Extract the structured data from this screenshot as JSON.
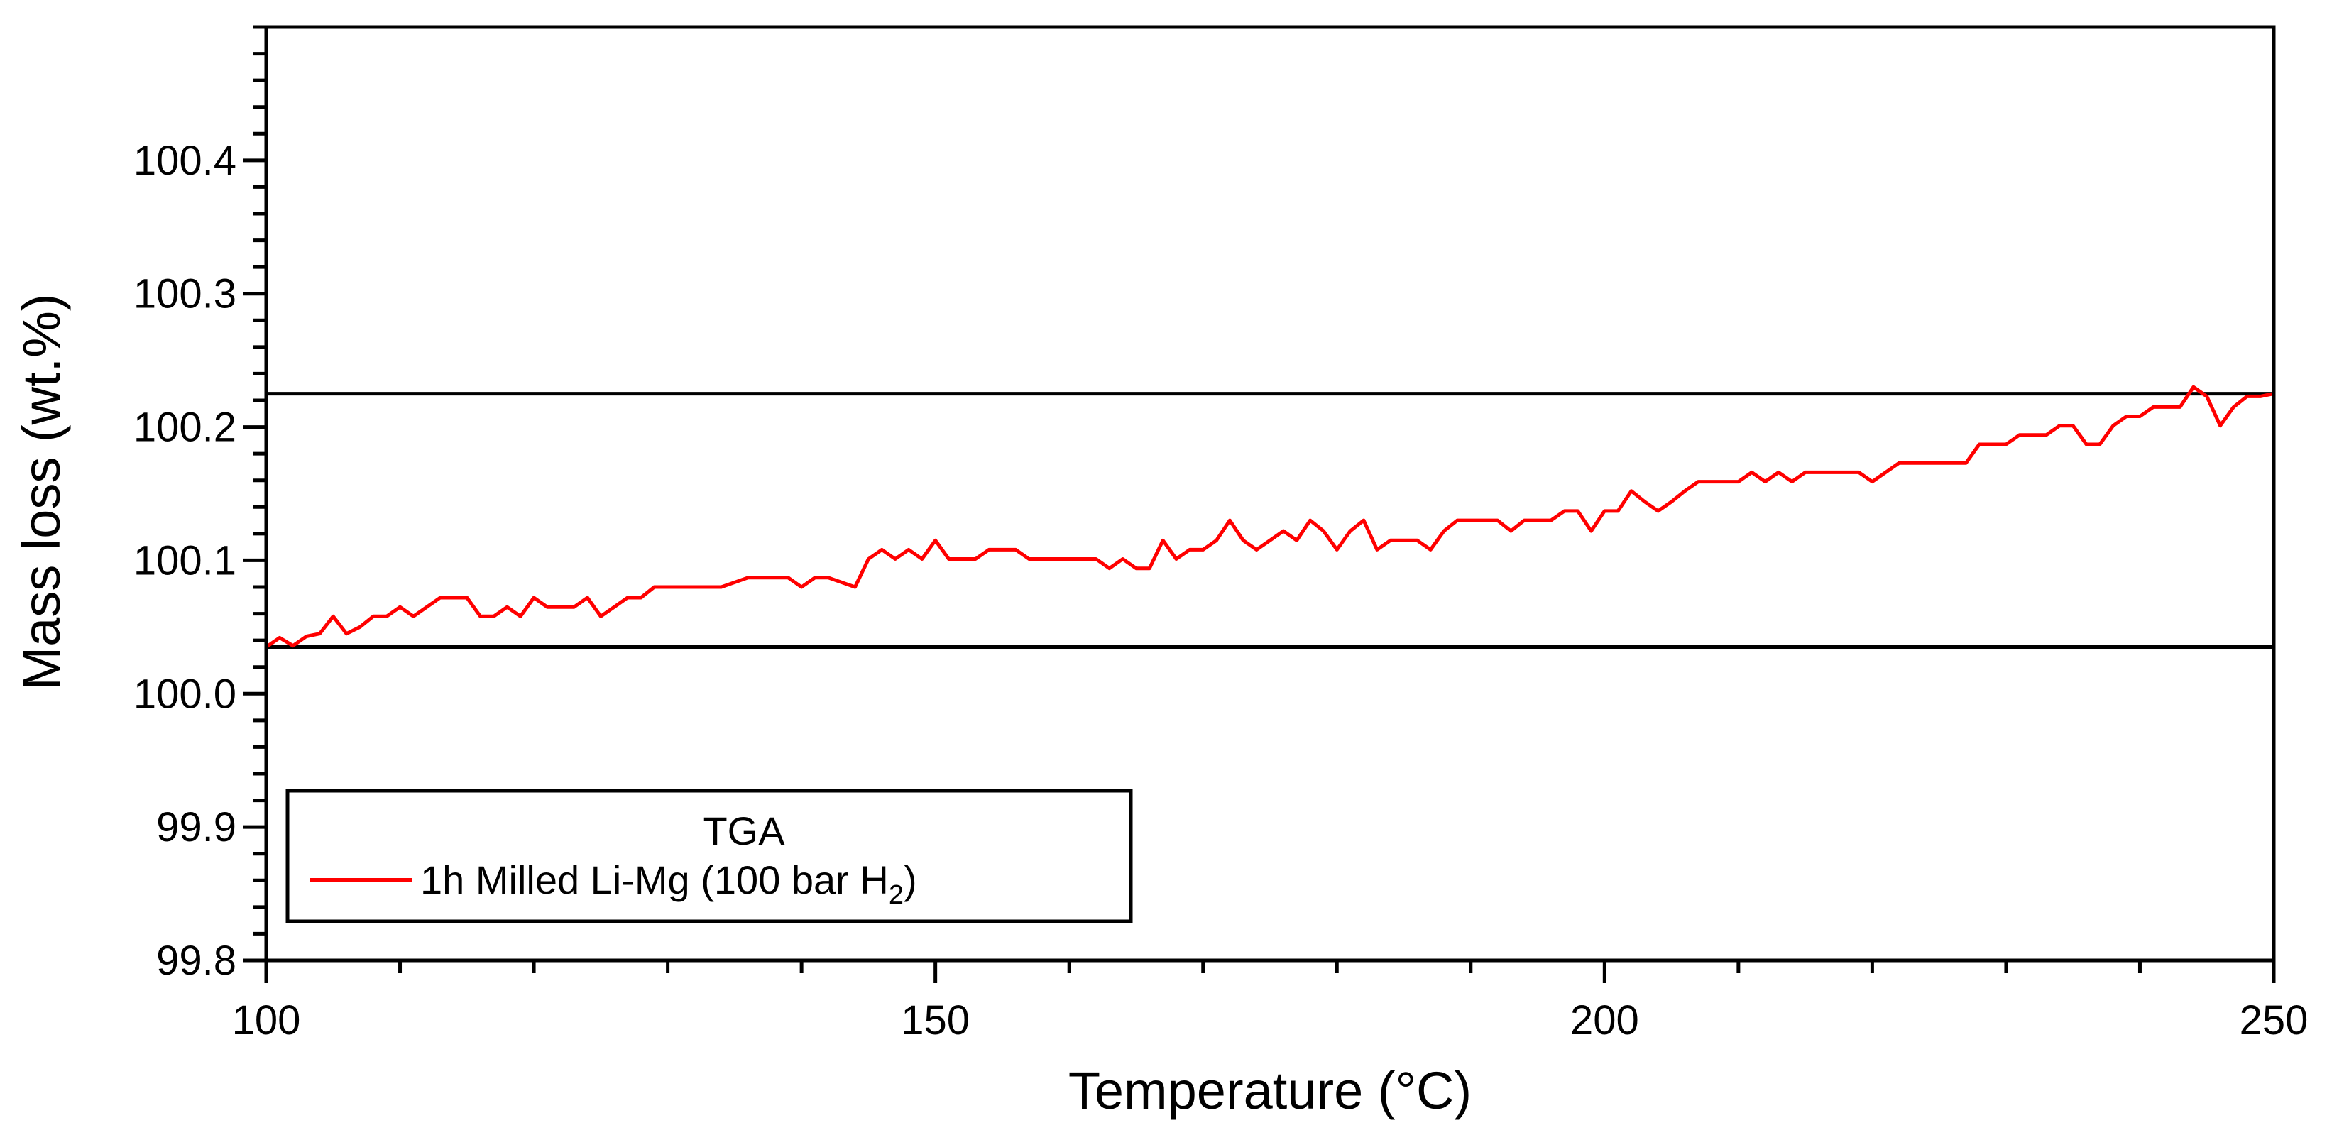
{
  "chart_data": {
    "type": "line",
    "xlabel": "Temperature (°C)",
    "ylabel": "Mass loss (wt.%)",
    "xlim": [
      100,
      250
    ],
    "ylim": [
      99.8,
      100.5
    ],
    "x_ticks": [
      100,
      150,
      200,
      250
    ],
    "x_tick_labels": [
      "100",
      "150",
      "200",
      "250"
    ],
    "x_minor_step": 10,
    "y_ticks": [
      99.8,
      99.9,
      100.0,
      100.1,
      100.2,
      100.3,
      100.4
    ],
    "y_tick_labels": [
      "99.8",
      "99.9",
      "100.0",
      "100.1",
      "100.2",
      "100.3",
      "100.4"
    ],
    "y_minor_step": 0.02,
    "grid": false,
    "legend": {
      "title": "TGA",
      "placement": "bottom-left",
      "entries": [
        {
          "label_main": "1h Milled Li-Mg (100 bar H",
          "label_sub": "2",
          "label_end": ")"
        }
      ]
    },
    "reference_lines": [
      {
        "y": 100.225,
        "color": "#000000"
      },
      {
        "y": 100.035,
        "color": "#000000"
      }
    ],
    "series": [
      {
        "color": "#ff0000",
        "x": [
          100,
          101,
          102,
          103,
          104,
          105,
          106,
          107,
          108,
          109,
          110,
          111,
          112,
          113,
          114,
          115,
          116,
          117,
          118,
          119,
          120,
          121,
          122,
          123,
          124,
          125,
          126,
          127,
          128,
          129,
          130,
          132,
          134,
          136,
          138,
          139,
          140,
          141,
          142,
          144,
          145,
          146,
          147,
          148,
          149,
          150,
          151,
          152,
          153,
          154,
          155,
          156,
          157,
          158,
          160,
          162,
          163,
          164,
          165,
          166,
          167,
          168,
          169,
          170,
          171,
          172,
          173,
          174,
          175,
          176,
          177,
          178,
          179,
          180,
          181,
          182,
          183,
          184,
          185,
          186,
          187,
          188,
          189,
          190,
          191,
          192,
          193,
          194,
          195,
          196,
          197,
          198,
          199,
          200,
          201,
          202,
          203,
          204,
          205,
          206,
          207,
          208,
          209,
          210,
          211,
          212,
          213,
          214,
          215,
          216,
          217,
          218,
          219,
          220,
          221,
          222,
          223,
          224,
          225,
          226,
          227,
          228,
          229,
          230,
          231,
          232,
          233,
          234,
          235,
          236,
          237,
          238,
          239,
          240,
          241,
          242,
          243,
          244,
          245,
          246,
          247,
          248,
          249,
          250
        ],
        "y": [
          100.035,
          100.042,
          100.036,
          100.043,
          100.045,
          100.058,
          100.045,
          100.05,
          100.058,
          100.058,
          100.065,
          100.058,
          100.065,
          100.072,
          100.072,
          100.072,
          100.058,
          100.058,
          100.065,
          100.058,
          100.072,
          100.065,
          100.065,
          100.065,
          100.072,
          100.058,
          100.065,
          100.072,
          100.072,
          100.08,
          100.08,
          100.08,
          100.08,
          100.087,
          100.087,
          100.087,
          100.08,
          100.087,
          100.087,
          100.08,
          100.101,
          100.108,
          100.101,
          100.108,
          100.101,
          100.115,
          100.101,
          100.101,
          100.101,
          100.108,
          100.108,
          100.108,
          100.101,
          100.101,
          100.101,
          100.101,
          100.094,
          100.101,
          100.094,
          100.094,
          100.115,
          100.101,
          100.108,
          100.108,
          100.115,
          100.13,
          100.115,
          100.108,
          100.115,
          100.122,
          100.115,
          100.13,
          100.122,
          100.108,
          100.122,
          100.13,
          100.108,
          100.115,
          100.115,
          100.115,
          100.108,
          100.122,
          100.13,
          100.13,
          100.13,
          100.13,
          100.122,
          100.13,
          100.13,
          100.13,
          100.137,
          100.137,
          100.122,
          100.137,
          100.137,
          100.152,
          100.144,
          100.137,
          100.144,
          100.152,
          100.159,
          100.159,
          100.159,
          100.159,
          100.166,
          100.159,
          100.166,
          100.159,
          100.166,
          100.166,
          100.166,
          100.166,
          100.166,
          100.159,
          100.166,
          100.173,
          100.173,
          100.173,
          100.173,
          100.173,
          100.173,
          100.187,
          100.187,
          100.187,
          100.194,
          100.194,
          100.194,
          100.201,
          100.201,
          100.187,
          100.187,
          100.201,
          100.208,
          100.208,
          100.215,
          100.215,
          100.215,
          100.23,
          100.223,
          100.201,
          100.215,
          100.223,
          100.223,
          100.225
        ]
      }
    ]
  }
}
